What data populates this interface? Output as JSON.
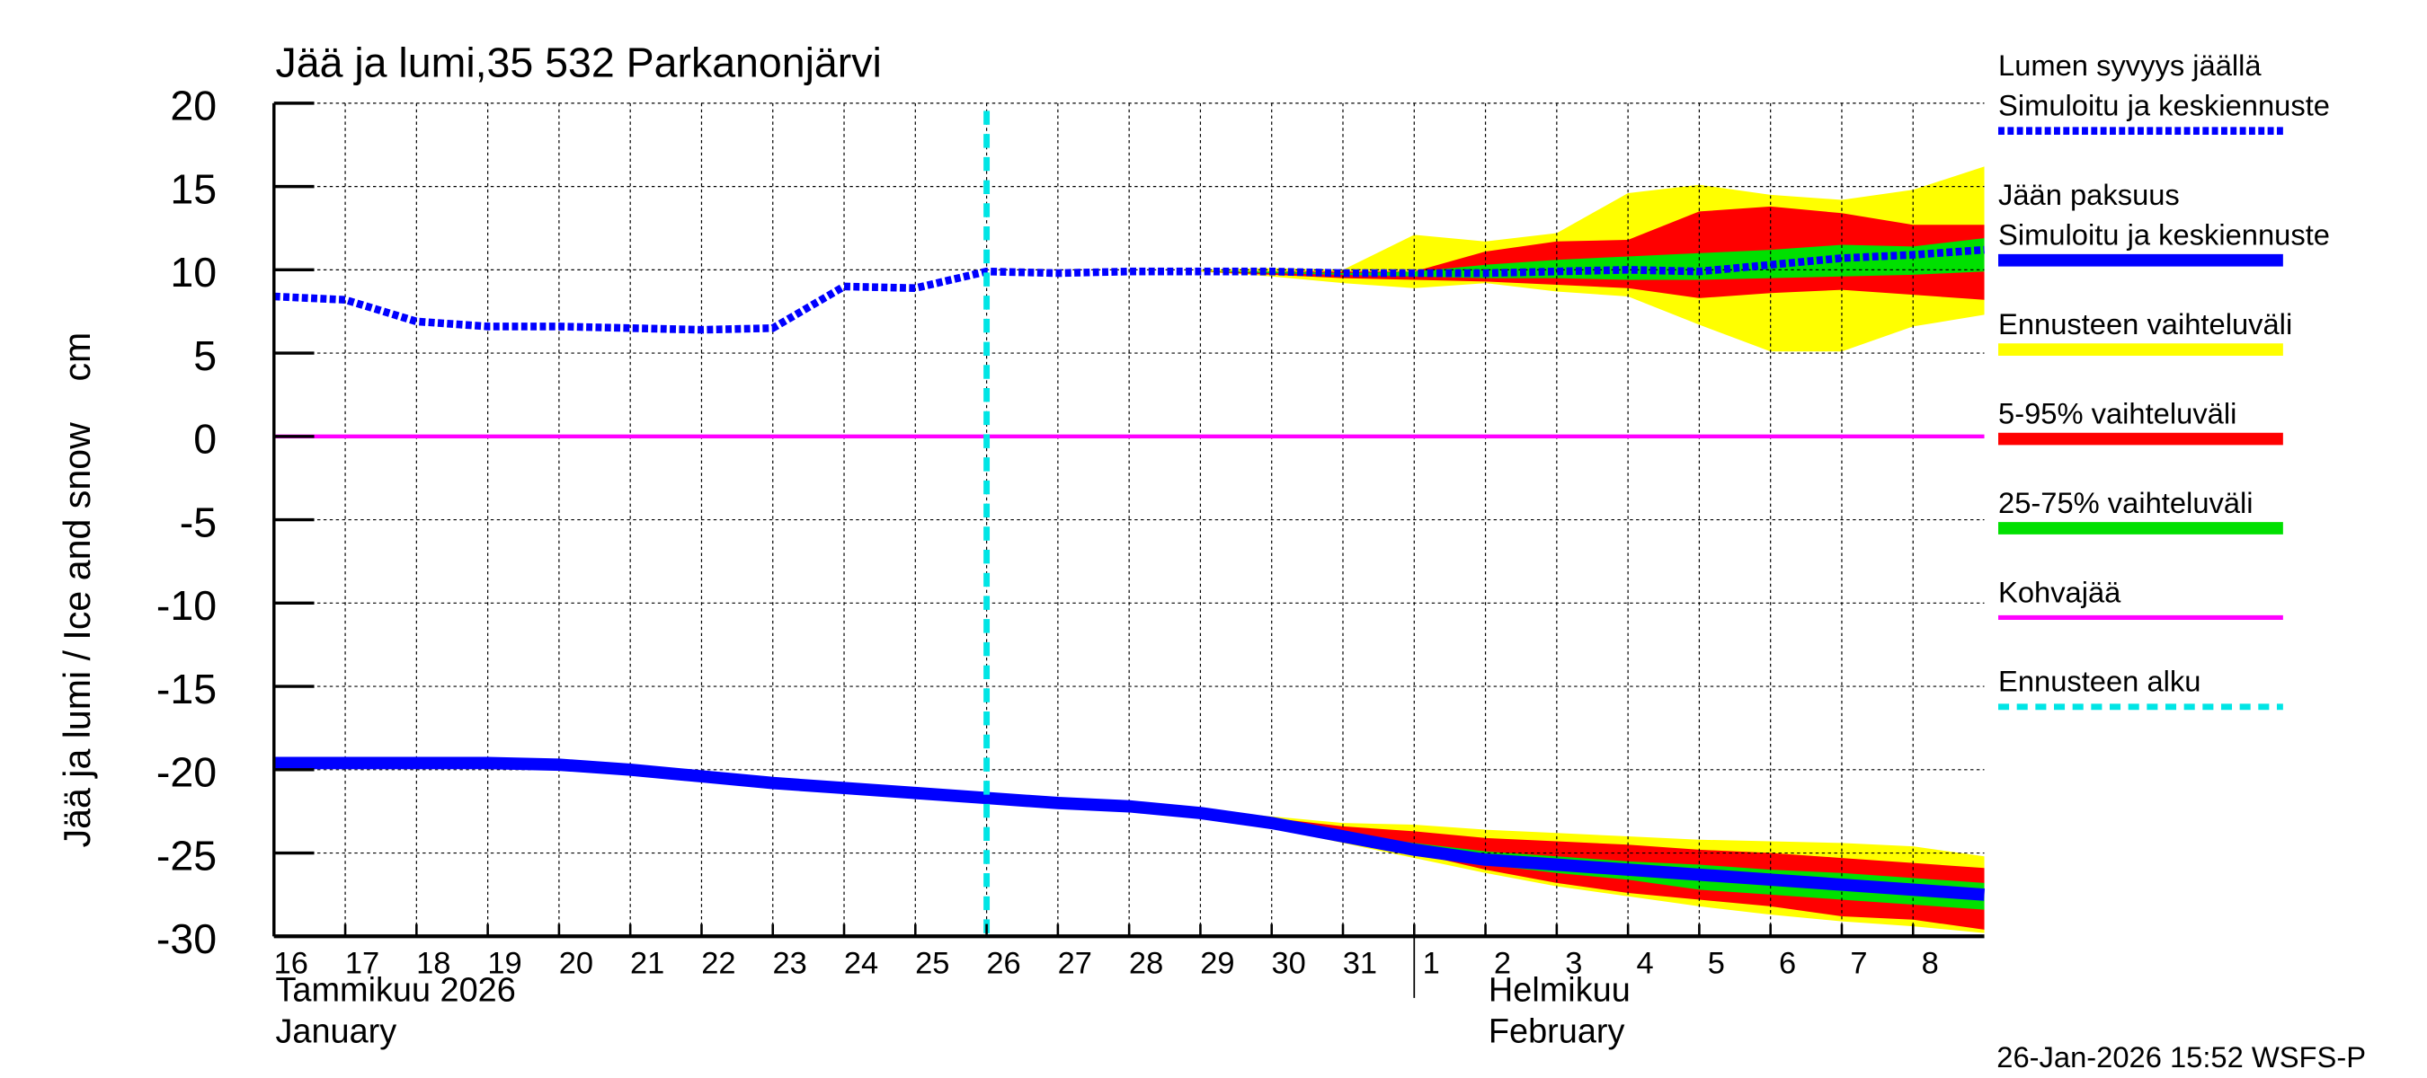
{
  "chart_data": {
    "type": "line",
    "title": "Jää ja lumi,35 532 Parkanonjärvi",
    "ylabel": "Jää ja lumi / Ice and snow    cm",
    "ylim": [
      -30,
      20
    ],
    "yticks": [
      20,
      15,
      10,
      5,
      0,
      -5,
      -10,
      -15,
      -20,
      -25,
      -30
    ],
    "xlim": [
      "2026-01-16",
      "2026-02-09"
    ],
    "xtick_labels": [
      "16",
      "17",
      "18",
      "19",
      "20",
      "21",
      "22",
      "23",
      "24",
      "25",
      "26",
      "27",
      "28",
      "29",
      "30",
      "31",
      "1",
      "2",
      "3",
      "4",
      "5",
      "6",
      "7",
      "8"
    ],
    "month_labels": [
      {
        "fi": "Tammikuu  2026",
        "en": "January",
        "date": "2026-01-16"
      },
      {
        "fi": "Helmikuu",
        "en": "February",
        "date": "2026-02-01"
      }
    ],
    "grid": true,
    "legend_position": "right",
    "forecast_start": "2026-01-26",
    "timestamp": "26-Jan-2026 15:52 WSFS-P",
    "colors": {
      "snow": "#0000ff",
      "ice": "#0000ff",
      "range": "#ffff00",
      "p5_95": "#ff0000",
      "p25_75": "#00e000",
      "slush": "#ff00ff",
      "forecast_start": "#00e5e5"
    },
    "legend": [
      {
        "title": "Lumen syvyys jäällä",
        "label": "Simuloitu ja keskiennuste",
        "style": "dashed-blue"
      },
      {
        "title": "Jään paksuus",
        "label": "Simuloitu ja keskiennuste",
        "style": "solid-blue"
      },
      {
        "title": "Ennusteen vaihteluväli",
        "style": "yellow"
      },
      {
        "title": "5-95% vaihteluväli",
        "style": "red"
      },
      {
        "title": "25-75% vaihteluväli",
        "style": "green"
      },
      {
        "title": "Kohvajää",
        "style": "magenta"
      },
      {
        "title": "Ennusteen alku",
        "style": "cyan-dashed"
      }
    ],
    "snow_series": {
      "x": [
        "2026-01-16",
        "2026-01-17",
        "2026-01-18",
        "2026-01-19",
        "2026-01-20",
        "2026-01-21",
        "2026-01-22",
        "2026-01-23",
        "2026-01-24",
        "2026-01-25",
        "2026-01-26",
        "2026-01-27",
        "2026-01-28",
        "2026-01-29",
        "2026-01-30",
        "2026-01-31",
        "2026-02-01",
        "2026-02-02",
        "2026-02-03",
        "2026-02-04",
        "2026-02-05",
        "2026-02-06",
        "2026-02-07",
        "2026-02-08",
        "2026-02-09"
      ],
      "y": [
        8.4,
        8.2,
        6.9,
        6.6,
        6.6,
        6.5,
        6.4,
        6.5,
        9.0,
        8.9,
        9.9,
        9.8,
        9.9,
        9.9,
        9.9,
        9.8,
        9.8,
        9.8,
        9.9,
        10.0,
        9.9,
        10.3,
        10.7,
        10.9,
        11.2
      ]
    },
    "ice_series": {
      "x": [
        "2026-01-16",
        "2026-01-17",
        "2026-01-18",
        "2026-01-19",
        "2026-01-20",
        "2026-01-21",
        "2026-01-22",
        "2026-01-23",
        "2026-01-24",
        "2026-01-25",
        "2026-01-26",
        "2026-01-27",
        "2026-01-28",
        "2026-01-29",
        "2026-01-30",
        "2026-01-31",
        "2026-02-01",
        "2026-02-02",
        "2026-02-03",
        "2026-02-04",
        "2026-02-05",
        "2026-02-06",
        "2026-02-07",
        "2026-02-08",
        "2026-02-09"
      ],
      "y": [
        -19.6,
        -19.6,
        -19.6,
        -19.6,
        -19.7,
        -20.0,
        -20.4,
        -20.8,
        -21.1,
        -21.4,
        -21.7,
        -22.0,
        -22.2,
        -22.6,
        -23.2,
        -24.0,
        -24.8,
        -25.4,
        -25.7,
        -26.0,
        -26.3,
        -26.6,
        -26.9,
        -27.2,
        -27.5
      ]
    },
    "slush_series": {
      "x": [
        "2026-01-16",
        "2026-02-09"
      ],
      "y": [
        0,
        0
      ]
    },
    "snow_bands": {
      "x": [
        "2026-01-29",
        "2026-01-30",
        "2026-01-31",
        "2026-02-01",
        "2026-02-02",
        "2026-02-03",
        "2026-02-04",
        "2026-02-05",
        "2026-02-06",
        "2026-02-07",
        "2026-02-08",
        "2026-02-09"
      ],
      "range": {
        "hi": [
          10.0,
          10.1,
          10.0,
          12.1,
          11.7,
          12.2,
          14.6,
          15.1,
          14.5,
          14.2,
          14.8,
          16.2
        ],
        "lo": [
          9.9,
          9.6,
          9.2,
          8.9,
          9.2,
          8.7,
          8.4,
          6.7,
          5.1,
          5.1,
          6.6,
          7.3
        ]
      },
      "p5_95": {
        "hi": [
          9.9,
          9.9,
          9.9,
          9.9,
          11.1,
          11.7,
          11.8,
          13.5,
          13.8,
          13.4,
          12.7,
          12.7
        ],
        "lo": [
          9.9,
          9.7,
          9.5,
          9.4,
          9.3,
          9.1,
          8.9,
          8.3,
          8.6,
          8.8,
          8.5,
          8.2
        ]
      },
      "p25_75": {
        "hi": [
          9.9,
          9.9,
          9.8,
          9.9,
          10.3,
          10.6,
          10.8,
          11.0,
          11.2,
          11.5,
          11.4,
          11.9
        ],
        "lo": [
          9.9,
          9.8,
          9.7,
          9.6,
          9.5,
          9.5,
          9.4,
          9.4,
          9.5,
          9.6,
          9.7,
          9.9
        ]
      }
    },
    "ice_bands": {
      "x": [
        "2026-01-28",
        "2026-01-29",
        "2026-01-30",
        "2026-01-31",
        "2026-02-01",
        "2026-02-02",
        "2026-02-03",
        "2026-02-04",
        "2026-02-05",
        "2026-02-06",
        "2026-02-07",
        "2026-02-08",
        "2026-02-09"
      ],
      "range": {
        "hi": [
          -22.2,
          -22.4,
          -22.8,
          -23.2,
          -23.3,
          -23.6,
          -23.8,
          -24.0,
          -24.2,
          -24.3,
          -24.4,
          -24.6,
          -25.2
        ],
        "lo": [
          -22.2,
          -22.8,
          -23.5,
          -24.4,
          -25.3,
          -26.2,
          -27.0,
          -27.6,
          -28.2,
          -28.7,
          -29.1,
          -29.4,
          -29.8
        ]
      },
      "p5_95": {
        "hi": [
          -22.2,
          -22.6,
          -22.9,
          -23.4,
          -23.7,
          -24.1,
          -24.3,
          -24.5,
          -24.8,
          -25.0,
          -25.3,
          -25.6,
          -25.9
        ],
        "lo": [
          -22.2,
          -22.7,
          -23.3,
          -24.1,
          -25.0,
          -26.0,
          -26.8,
          -27.4,
          -27.8,
          -28.2,
          -28.8,
          -29.0,
          -29.6
        ]
      },
      "p25_75": {
        "hi": [
          -22.2,
          -22.6,
          -23.1,
          -23.8,
          -24.4,
          -24.9,
          -25.2,
          -25.5,
          -25.7,
          -26.0,
          -26.2,
          -26.5,
          -26.8
        ],
        "lo": [
          -22.2,
          -22.6,
          -23.3,
          -24.1,
          -25.0,
          -25.7,
          -26.2,
          -26.6,
          -27.2,
          -27.5,
          -27.8,
          -28.1,
          -28.4
        ]
      }
    }
  }
}
